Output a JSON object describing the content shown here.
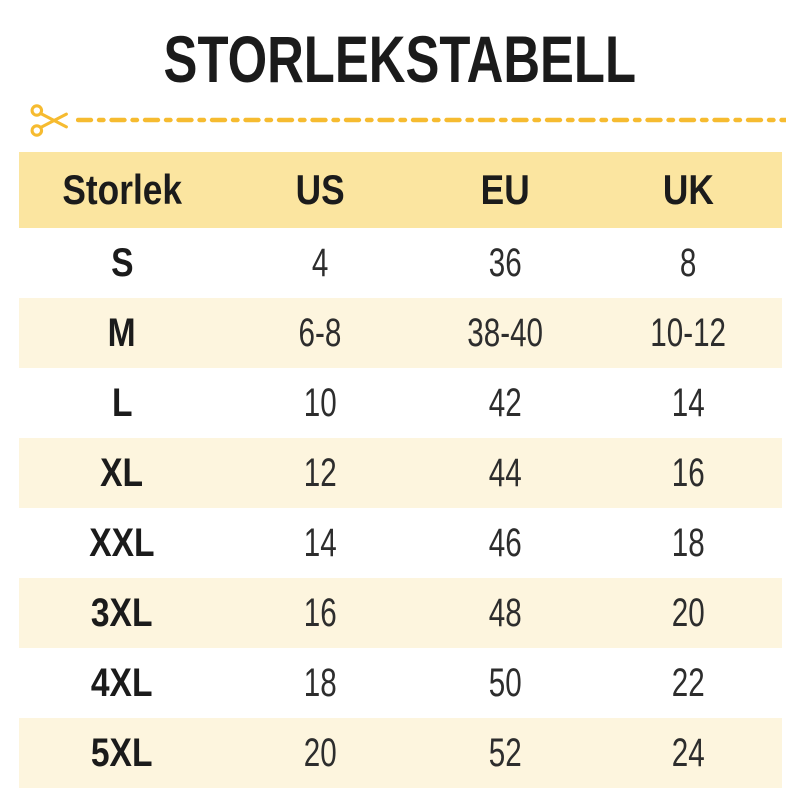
{
  "page": {
    "title": "STORLEKSTABELL"
  },
  "colors": {
    "accent_gold": "#F6BB30",
    "header_bg": "#FBE5A0",
    "row_alt_bg": "#FDF5DE",
    "text_dark": "#1B1B1B",
    "text_value": "#2D2D2D"
  },
  "cut_line": {
    "icon": "scissors-icon",
    "style": "dash-dot"
  },
  "table": {
    "headers": [
      "Storlek",
      "US",
      "EU",
      "UK"
    ],
    "rows": [
      {
        "size": "S",
        "us": "4",
        "eu": "36",
        "uk": "8"
      },
      {
        "size": "M",
        "us": "6-8",
        "eu": "38-40",
        "uk": "10-12"
      },
      {
        "size": "L",
        "us": "10",
        "eu": "42",
        "uk": "14"
      },
      {
        "size": "XL",
        "us": "12",
        "eu": "44",
        "uk": "16"
      },
      {
        "size": "XXL",
        "us": "14",
        "eu": "46",
        "uk": "18"
      },
      {
        "size": "3XL",
        "us": "16",
        "eu": "48",
        "uk": "20"
      },
      {
        "size": "4XL",
        "us": "18",
        "eu": "50",
        "uk": "22"
      },
      {
        "size": "5XL",
        "us": "20",
        "eu": "52",
        "uk": "24"
      }
    ]
  }
}
